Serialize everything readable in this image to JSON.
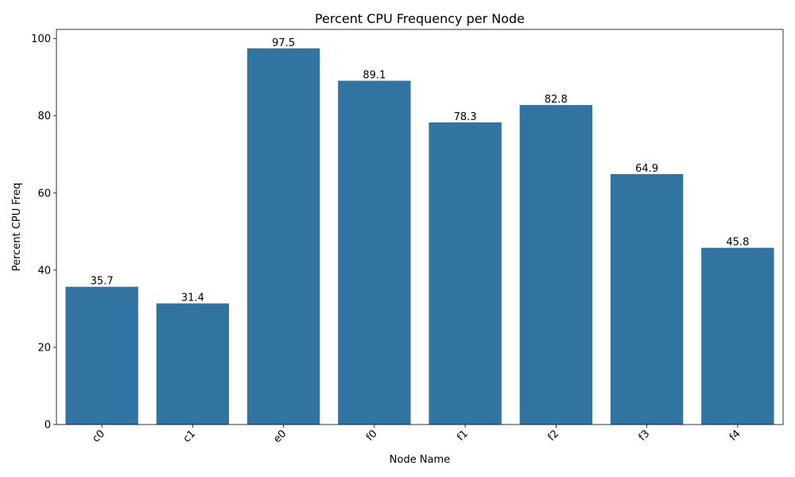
{
  "chart_data": {
    "type": "bar",
    "title": "Percent CPU Frequency per Node",
    "xlabel": "Node Name",
    "ylabel": "Percent CPU Freq",
    "categories": [
      "c0",
      "c1",
      "e0",
      "f0",
      "f1",
      "f2",
      "f3",
      "f4"
    ],
    "values": [
      35.7,
      31.4,
      97.5,
      89.1,
      78.3,
      82.8,
      64.9,
      45.8
    ],
    "value_labels": [
      "35.7",
      "31.4",
      "97.5",
      "89.1",
      "78.3",
      "82.8",
      "64.9",
      "45.8"
    ],
    "ylim": [
      0,
      102.4
    ],
    "yticks": [
      0,
      20,
      40,
      60,
      80,
      100
    ],
    "x_tick_rotation_deg": 45,
    "grid": false,
    "bar_color": "#3274a1"
  }
}
